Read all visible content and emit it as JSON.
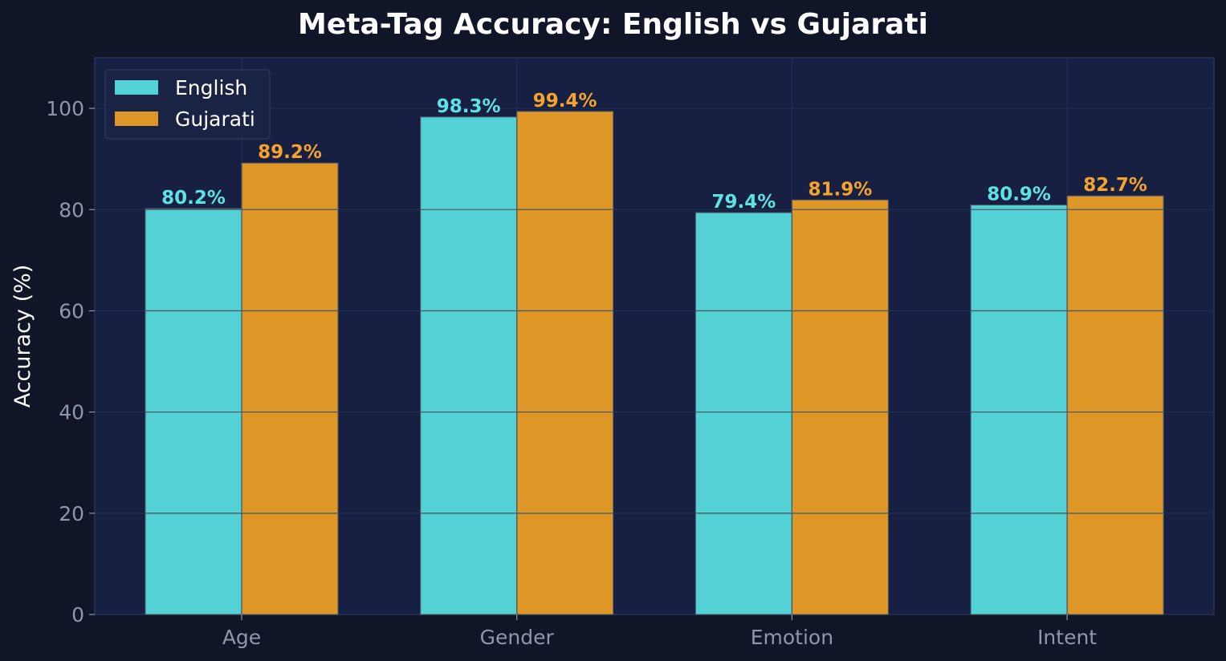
{
  "chart_data": {
    "type": "bar",
    "title": "Meta-Tag Accuracy: English vs Gujarati",
    "xlabel": "",
    "ylabel": "Accuracy (%)",
    "categories": [
      "Age",
      "Gender",
      "Emotion",
      "Intent"
    ],
    "series": [
      {
        "name": "English",
        "values": [
          80.2,
          98.3,
          79.4,
          80.9
        ],
        "labels": [
          "80.2%",
          "98.3%",
          "79.4%",
          "80.9%"
        ],
        "color": "#53d1d4",
        "label_color": "#5de3e6"
      },
      {
        "name": "Gujarati",
        "values": [
          89.2,
          99.4,
          81.9,
          82.7
        ],
        "labels": [
          "89.2%",
          "99.4%",
          "81.9%",
          "82.7%"
        ],
        "color": "#de9626",
        "label_color": "#f5a32a"
      }
    ],
    "ylim": [
      0,
      110
    ],
    "yticks": [
      0,
      20,
      40,
      60,
      80,
      100
    ],
    "grid": true,
    "legend_position": "top-left"
  },
  "colors": {
    "page_background": "#101528",
    "plot_background": "#172042",
    "grid": "#243055",
    "axis": "#2b3456",
    "bar_line": "#4a5a66"
  }
}
